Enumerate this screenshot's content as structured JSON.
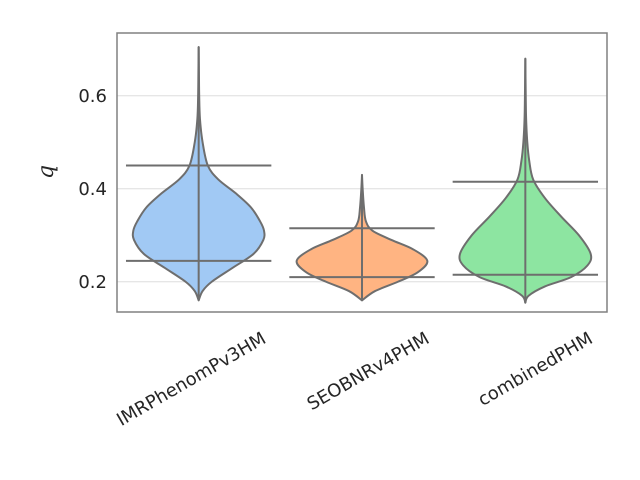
{
  "chart_data": {
    "type": "violin",
    "ylabel": "q",
    "ylim": [
      0.135,
      0.735
    ],
    "yticks": [
      0.2,
      0.4,
      0.6
    ],
    "ytick_labels": [
      "0.2",
      "0.4",
      "0.6"
    ],
    "grid": "horizontal",
    "categories": [
      "IMRPhenomPv3HM",
      "SEOBNRv4PHM",
      "combinedPHM"
    ],
    "series": [
      {
        "color": "#a1c9f4",
        "min": 0.16,
        "max": 0.705,
        "lower_quantile": 0.245,
        "upper_quantile": 0.45,
        "density": [
          [
            0.16,
            0.0
          ],
          [
            0.18,
            0.06
          ],
          [
            0.2,
            0.2
          ],
          [
            0.23,
            0.52
          ],
          [
            0.26,
            0.84
          ],
          [
            0.29,
            0.99
          ],
          [
            0.31,
            1.0
          ],
          [
            0.33,
            0.94
          ],
          [
            0.36,
            0.8
          ],
          [
            0.39,
            0.57
          ],
          [
            0.42,
            0.3
          ],
          [
            0.45,
            0.14
          ],
          [
            0.5,
            0.06
          ],
          [
            0.55,
            0.02
          ],
          [
            0.6,
            0.008
          ],
          [
            0.65,
            0.004
          ],
          [
            0.705,
            0.0
          ]
        ]
      },
      {
        "color": "#ffb482",
        "min": 0.16,
        "max": 0.43,
        "lower_quantile": 0.21,
        "upper_quantile": 0.315,
        "density": [
          [
            0.16,
            0.0
          ],
          [
            0.18,
            0.2
          ],
          [
            0.2,
            0.55
          ],
          [
            0.22,
            0.85
          ],
          [
            0.245,
            1.0
          ],
          [
            0.27,
            0.78
          ],
          [
            0.29,
            0.45
          ],
          [
            0.31,
            0.16
          ],
          [
            0.33,
            0.06
          ],
          [
            0.36,
            0.03
          ],
          [
            0.4,
            0.01
          ],
          [
            0.43,
            0.0
          ]
        ]
      },
      {
        "color": "#8de5a1",
        "min": 0.155,
        "max": 0.68,
        "lower_quantile": 0.215,
        "upper_quantile": 0.415,
        "density": [
          [
            0.155,
            0.0
          ],
          [
            0.17,
            0.05
          ],
          [
            0.19,
            0.3
          ],
          [
            0.21,
            0.7
          ],
          [
            0.235,
            0.95
          ],
          [
            0.26,
            1.0
          ],
          [
            0.3,
            0.82
          ],
          [
            0.34,
            0.55
          ],
          [
            0.38,
            0.3
          ],
          [
            0.42,
            0.12
          ],
          [
            0.46,
            0.06
          ],
          [
            0.5,
            0.03
          ],
          [
            0.55,
            0.012
          ],
          [
            0.6,
            0.006
          ],
          [
            0.68,
            0.0
          ]
        ]
      }
    ]
  }
}
